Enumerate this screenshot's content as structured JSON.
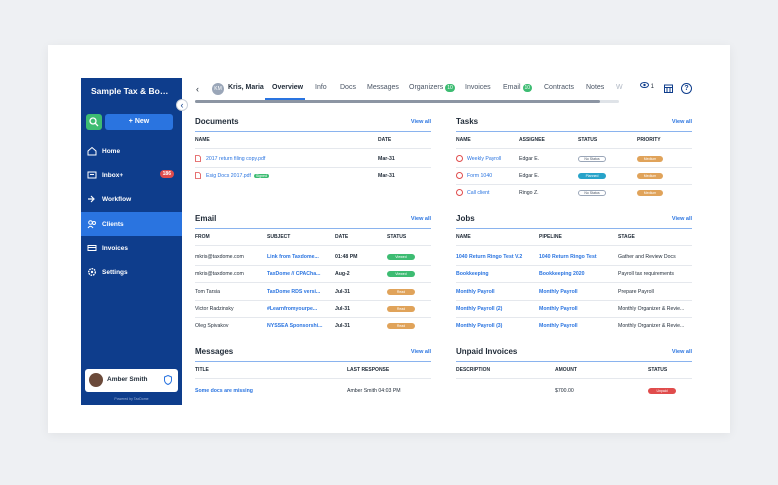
{
  "sidebar": {
    "firm_name": "Sample Tax & Bookke...",
    "new_button": "+ New",
    "items": [
      {
        "label": "Home",
        "icon": "home-icon"
      },
      {
        "label": "Inbox+",
        "icon": "inbox-icon",
        "badge": "186"
      },
      {
        "label": "Workflow",
        "icon": "workflow-icon"
      },
      {
        "label": "Clients",
        "icon": "clients-icon",
        "active": true
      },
      {
        "label": "Invoices",
        "icon": "invoices-icon"
      },
      {
        "label": "Settings",
        "icon": "gear-icon"
      }
    ],
    "user_name": "Amber Smith",
    "powered_by": "Powered by TaxDome"
  },
  "header": {
    "client_initials": "KM",
    "client_name": "Kris, Maria",
    "tabs": [
      {
        "label": "Overview",
        "active": true
      },
      {
        "label": "Info"
      },
      {
        "label": "Docs"
      },
      {
        "label": "Messages"
      },
      {
        "label": "Organizers",
        "count": "10"
      },
      {
        "label": "Invoices"
      },
      {
        "label": "Email",
        "count": "10"
      },
      {
        "label": "Contracts"
      },
      {
        "label": "Notes"
      },
      {
        "label": "W"
      }
    ],
    "eye_count": "1",
    "help": "?"
  },
  "documents": {
    "title": "Documents",
    "view_all": "View all",
    "columns": [
      "NAME",
      "DATE"
    ],
    "rows": [
      {
        "name": "2017 return filing copy.pdf",
        "date": "Mar-31",
        "tag": ""
      },
      {
        "name": "Esig Docs 2017.pdf",
        "date": "Mar-31",
        "tag": "Signed"
      }
    ]
  },
  "tasks": {
    "title": "Tasks",
    "view_all": "View all",
    "columns": [
      "NAME",
      "ASSIGNEE",
      "STATUS",
      "PRIORITY"
    ],
    "rows": [
      {
        "name": "Weekly Payroll",
        "assignee": "Edgar E.",
        "status": "No Status",
        "priority": "Medium"
      },
      {
        "name": "Form 1040",
        "assignee": "Edgar E.",
        "status": "Planned",
        "priority": "Medium"
      },
      {
        "name": "Call client",
        "assignee": "Ringo Z.",
        "status": "No Status",
        "priority": "Medium"
      }
    ]
  },
  "email": {
    "title": "Email",
    "view_all": "View all",
    "columns": [
      "FROM",
      "SUBJECT",
      "DATE",
      "STATUS"
    ],
    "rows": [
      {
        "from": "mkris@taxdome.com",
        "subject": "Link from Taxdome...",
        "date": "01:48 PM",
        "status": "Viewed"
      },
      {
        "from": "mkris@taxdome.com",
        "subject": "TaxDome // CPACha...",
        "date": "Aug-2",
        "status": "Viewed"
      },
      {
        "from": "Tom Tarsia",
        "subject": "TaxDome RDS versi...",
        "date": "Jul-31",
        "status": "Read"
      },
      {
        "from": "Victor Radzinsky",
        "subject": "#Learnfromyourpe...",
        "date": "Jul-31",
        "status": "Read"
      },
      {
        "from": "Oleg Spivakov",
        "subject": "NYSSEA Sponsorshi...",
        "date": "Jul-31",
        "status": "Read"
      }
    ]
  },
  "jobs": {
    "title": "Jobs",
    "view_all": "View all",
    "columns": [
      "NAME",
      "PIPELINE",
      "STAGE"
    ],
    "rows": [
      {
        "name": "1040 Return Ringo Test V.2",
        "pipeline": "1040 Return Ringo Test",
        "stage": "Gather and Review Docs"
      },
      {
        "name": "Bookkeeping",
        "pipeline": "Bookkeeping 2020",
        "stage": "Payroll tax requirements"
      },
      {
        "name": "Monthly Payroll",
        "pipeline": "Monthly Payroll",
        "stage": "Prepare Payroll"
      },
      {
        "name": "Monthly Payroll (2)",
        "pipeline": "Monthly Payroll",
        "stage": "Monthly Organizer & Revie..."
      },
      {
        "name": "Monthly Payroll (3)",
        "pipeline": "Monthly Payroll",
        "stage": "Monthly Organizer & Revie..."
      }
    ]
  },
  "messages": {
    "title": "Messages",
    "view_all": "View all",
    "columns": [
      "TITLE",
      "LAST RESPONSE"
    ],
    "rows": [
      {
        "title": "Some docs are missing",
        "last_response": "Amber Smith 04:03 PM"
      }
    ]
  },
  "unpaid_invoices": {
    "title": "Unpaid Invoices",
    "view_all": "View all",
    "columns": [
      "DESCRIPTION",
      "AMOUNT",
      "STATUS"
    ],
    "rows": [
      {
        "description": "",
        "amount": "$700.00",
        "status": "Unpaid"
      }
    ]
  },
  "colors": {
    "sidebar": "#0e3d8c",
    "accent": "#2a74e0",
    "green": "#3dbc72",
    "red": "#e04c4c",
    "orange": "#e0a35a",
    "teal": "#27a3c9"
  }
}
